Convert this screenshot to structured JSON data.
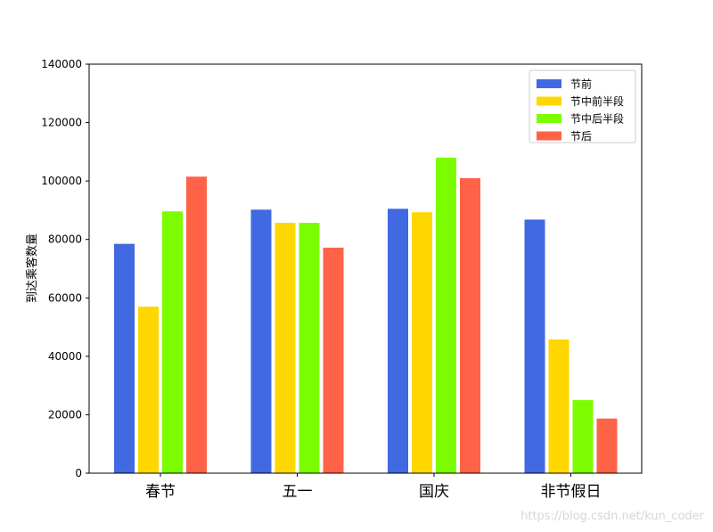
{
  "chart_data": {
    "type": "bar",
    "categories": [
      "春节",
      "五一",
      "国庆",
      "非节假日"
    ],
    "series": [
      {
        "name": "节前",
        "color": "#4169E1",
        "values": [
          78500,
          90200,
          90500,
          86800
        ]
      },
      {
        "name": "节中前半段",
        "color": "#FFD700",
        "values": [
          57000,
          85700,
          89300,
          45800
        ]
      },
      {
        "name": "节中后半段",
        "color": "#7CFC00",
        "values": [
          89600,
          85700,
          108000,
          25000
        ]
      },
      {
        "name": "节后",
        "color": "#FF6347",
        "values": [
          101500,
          77200,
          101000,
          18700
        ]
      }
    ],
    "title": "",
    "xlabel": "",
    "ylabel": "到达乘客数量",
    "ylim": [
      0,
      140000
    ],
    "yticks": [
      0,
      20000,
      40000,
      60000,
      80000,
      100000,
      120000,
      140000
    ],
    "grid": false,
    "legend_position": "top-right"
  },
  "watermark": "https://blog.csdn.net/kun_coder"
}
